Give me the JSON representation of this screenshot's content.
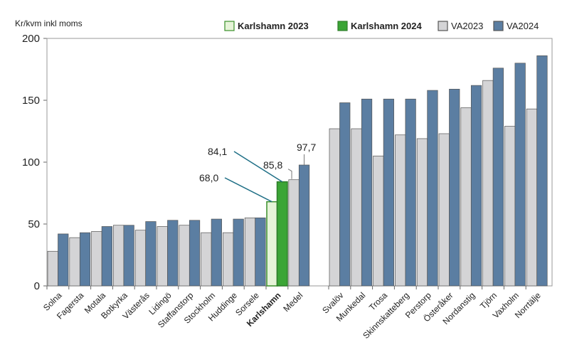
{
  "chart_data": {
    "type": "bar",
    "ylabel": "Kr/kvm inkl moms",
    "ylim": [
      0,
      200
    ],
    "yticks": [
      0,
      50,
      100,
      150,
      200
    ],
    "grid": false,
    "legend_position": "top-right",
    "colors": {
      "va2023": "#d4d4d6",
      "va2024": "#5b7ea2",
      "karlshamn2023": "#e6f4d8",
      "karlshamn2024": "#3ba536",
      "karlshamn2023_border": "#3a8f2a",
      "karlshamn2024_border": "#2e7d2a",
      "bar_border": "#555555"
    },
    "legend": [
      {
        "key": "karlshamn2023",
        "label": "Karlshamn 2023",
        "bold": true
      },
      {
        "key": "karlshamn2024",
        "label": "Karlshamn 2024",
        "bold": true
      },
      {
        "key": "va2023",
        "label": "VA2023",
        "bold": false
      },
      {
        "key": "va2024",
        "label": "VA2024",
        "bold": false
      }
    ],
    "groups": [
      {
        "categories": [
          {
            "name": "Solna",
            "v2023": 28,
            "v2024": 42
          },
          {
            "name": "Fagersta",
            "v2023": 39,
            "v2024": 43
          },
          {
            "name": "Motala",
            "v2023": 44,
            "v2024": 48
          },
          {
            "name": "Botkyrka",
            "v2023": 49,
            "v2024": 49
          },
          {
            "name": "Västerås",
            "v2023": 45,
            "v2024": 52
          },
          {
            "name": "Lidingö",
            "v2023": 48,
            "v2024": 53
          },
          {
            "name": "Staffanstorp",
            "v2023": 49,
            "v2024": 53
          },
          {
            "name": "Stockholm",
            "v2023": 43,
            "v2024": 54
          },
          {
            "name": "Huddinge",
            "v2023": 43,
            "v2024": 54
          },
          {
            "name": "Sorsele",
            "v2023": 55,
            "v2024": 55
          },
          {
            "name": "Karlshamn",
            "v2023": 68.0,
            "v2024": 84.1,
            "bold": true,
            "highlight": true
          },
          {
            "name": "Medel",
            "v2023": 85.8,
            "v2024": 97.7
          }
        ]
      },
      {
        "categories": [
          {
            "name": "Svalöv",
            "v2023": 127,
            "v2024": 148
          },
          {
            "name": "Munkedal",
            "v2023": 127,
            "v2024": 151
          },
          {
            "name": "Trosa",
            "v2023": 105,
            "v2024": 151
          },
          {
            "name": "Skinnskatteberg",
            "v2023": 122,
            "v2024": 151
          },
          {
            "name": "Perstorp",
            "v2023": 119,
            "v2024": 158
          },
          {
            "name": "Österåker",
            "v2023": 123,
            "v2024": 159
          },
          {
            "name": "Nordanstig",
            "v2023": 144,
            "v2024": 162
          },
          {
            "name": "Tjörn",
            "v2023": 166,
            "v2024": 176
          },
          {
            "name": "Vaxholm",
            "v2023": 129,
            "v2024": 180
          },
          {
            "name": "Norrtälje",
            "v2023": 143,
            "v2024": 186
          }
        ]
      }
    ],
    "annotations": [
      {
        "text": "68,0",
        "target_category": "Karlshamn",
        "series": "v2023"
      },
      {
        "text": "84,1",
        "target_category": "Karlshamn",
        "series": "v2024"
      },
      {
        "text": "85,8",
        "target_category": "Medel",
        "series": "v2023"
      },
      {
        "text": "97,7",
        "target_category": "Medel",
        "series": "v2024"
      }
    ]
  }
}
